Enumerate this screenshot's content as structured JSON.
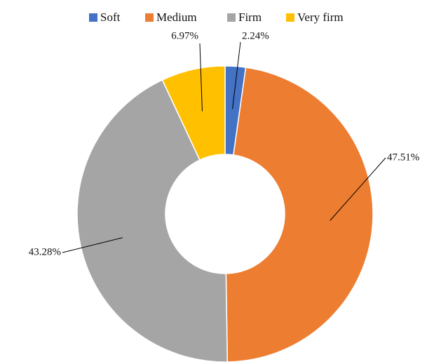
{
  "chart_data": {
    "type": "donut",
    "categories": [
      "Soft",
      "Medium",
      "Firm",
      "Very firm"
    ],
    "values": [
      2.24,
      47.51,
      43.28,
      6.97
    ],
    "value_labels": [
      "2.24%",
      "47.51%",
      "43.28%",
      "6.97%"
    ],
    "colors": [
      "#4472c4",
      "#ed7d31",
      "#a5a5a5",
      "#ffc000"
    ],
    "legend": "top"
  }
}
